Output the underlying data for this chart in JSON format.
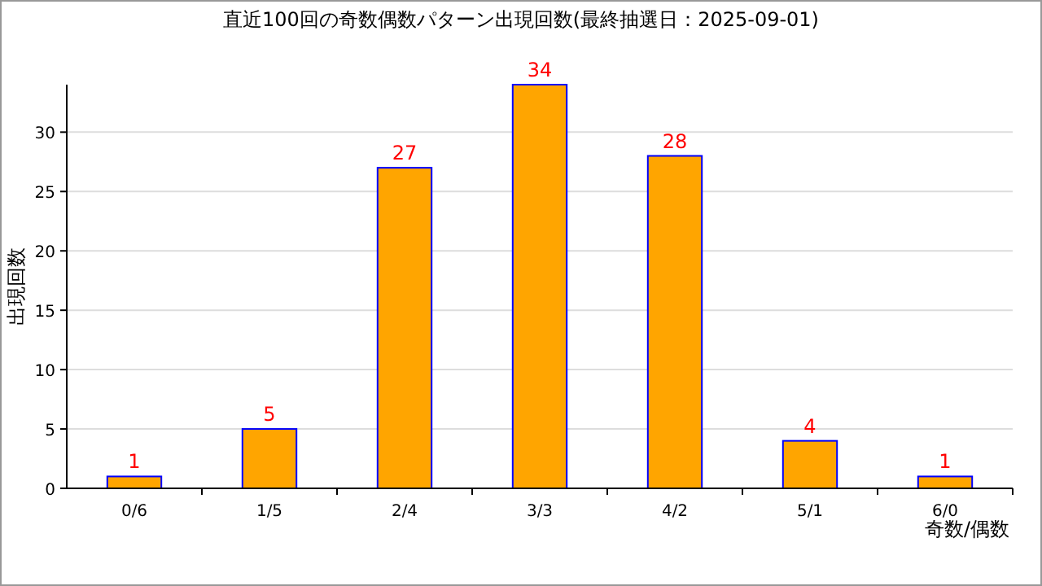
{
  "chart_data": {
    "type": "bar",
    "title": "直近100回の奇数偶数パターン出現回数(最終抽選日：2025-09-01)",
    "xlabel": "奇数/偶数",
    "ylabel": "出現回数",
    "categories": [
      "0/6",
      "1/5",
      "2/4",
      "3/3",
      "4/2",
      "5/1",
      "6/0"
    ],
    "values": [
      1,
      5,
      27,
      34,
      28,
      4,
      1
    ],
    "color": "#ffa500",
    "data_labels": true,
    "ylim": [
      0,
      34
    ],
    "yticks": [
      0,
      5,
      10,
      15,
      20,
      25,
      30
    ],
    "grid": "y"
  }
}
